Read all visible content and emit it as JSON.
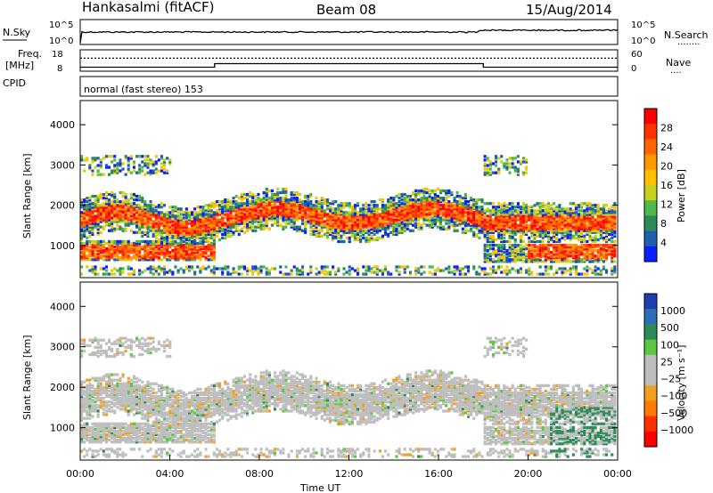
{
  "header": {
    "station": "Hankasalmi (fitACF)",
    "beam": "Beam 08",
    "date": "15/Aug/2014"
  },
  "mode_text": "normal (fast stereo) 153",
  "panel_labels": {
    "nsky": "N.Sky",
    "nsearch": "N.Search",
    "nsearch_line": "........",
    "freq": "Freq.",
    "freq_unit": "[MHz]",
    "cpid": "CPID",
    "nave": "Nave",
    "nave_line": "...."
  },
  "chart_data": [
    {
      "type": "line",
      "name": "noise-panel",
      "left_ticks": [
        "10^5",
        "10^0"
      ],
      "right_ticks": [
        "10^5",
        "10^0"
      ],
      "series": [
        {
          "name": "N.Sky",
          "style": "solid"
        },
        {
          "name": "N.Search",
          "style": "dotted"
        }
      ]
    },
    {
      "type": "line",
      "name": "frequency-panel",
      "left_ticks": [
        "18",
        "8"
      ],
      "right_ticks": [
        "60",
        "0"
      ],
      "series": [
        {
          "name": "Freq.",
          "style": "solid",
          "x": [
            0,
            6,
            6,
            18,
            18,
            24
          ],
          "y": [
            9.6,
            9.6,
            11.4,
            11.4,
            9.6,
            9.6
          ]
        },
        {
          "name": "Nave",
          "style": "dotted",
          "x": [
            0,
            24
          ],
          "y": [
            14.2,
            14.2
          ]
        }
      ]
    },
    {
      "type": "heatmap",
      "name": "power-panel",
      "ylabel": "Slant Range [km]",
      "yticks": [
        1000,
        2000,
        3000,
        4000
      ],
      "ylim": [
        200,
        4600
      ],
      "xlim": [
        0,
        24
      ],
      "colorbar": {
        "label": "Power [dB]",
        "ticks": [
          "28",
          "24",
          "20",
          "16",
          "12",
          "8",
          "4"
        ],
        "colors": [
          "#ff0000",
          "#ff3300",
          "#ff6600",
          "#ff9900",
          "#ffc000",
          "#c8d21e",
          "#50b848",
          "#2e8b57",
          "#1f5fb0",
          "#0a1fff"
        ]
      }
    },
    {
      "type": "heatmap",
      "name": "velocity-panel",
      "ylabel": "Slant Range [km]",
      "yticks": [
        1000,
        2000,
        3000,
        4000
      ],
      "ylim": [
        200,
        4600
      ],
      "xlim": [
        0,
        24
      ],
      "colorbar": {
        "label": "Velocity [m s⁻¹]",
        "ticks": [
          "1000",
          "500",
          "100",
          "25",
          "−25",
          "−100",
          "−500",
          "−1000"
        ],
        "colors": [
          "#1f3fb0",
          "#2e6eb8",
          "#2e8b57",
          "#5ac840",
          "#bebebe",
          "#bebebe",
          "#f0a020",
          "#ff7a00",
          "#ff3000",
          "#ff0000"
        ]
      }
    }
  ],
  "x_axis": {
    "ticks": [
      "00:00",
      "04:00",
      "08:00",
      "12:00",
      "16:00",
      "20:00",
      "00:00"
    ],
    "label": "Time UT"
  }
}
